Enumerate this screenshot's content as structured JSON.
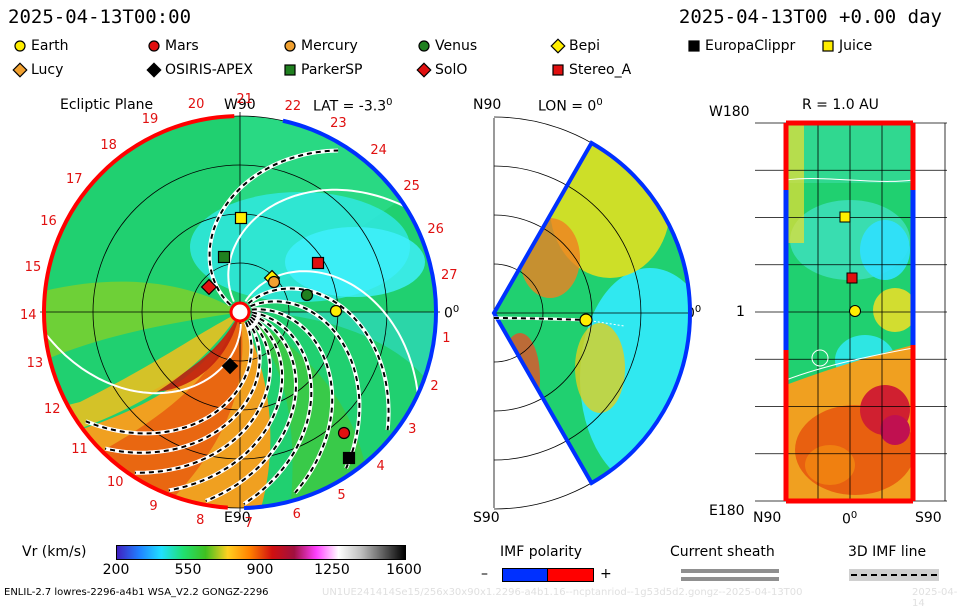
{
  "header": {
    "timestamp_left": "2025-04-13T00:00",
    "timestamp_right": "2025-04-13T00 +0.00 day"
  },
  "legend": {
    "row1": [
      {
        "name": "Earth",
        "shape": "circle",
        "color": "#ffee00"
      },
      {
        "name": "Mars",
        "shape": "circle",
        "color": "#e01010"
      },
      {
        "name": "Mercury",
        "shape": "circle",
        "color": "#f0a030"
      },
      {
        "name": "Venus",
        "shape": "circle",
        "color": "#208020"
      },
      {
        "name": "Bepi",
        "shape": "diamond",
        "color": "#ffee00"
      },
      {
        "name": "EuropaClippr",
        "shape": "square",
        "color": "#000000"
      },
      {
        "name": "Juice",
        "shape": "square",
        "color": "#ffee00"
      }
    ],
    "row2": [
      {
        "name": "Lucy",
        "shape": "diamond",
        "color": "#f0a030"
      },
      {
        "name": "OSIRIS-APEX",
        "shape": "diamond",
        "color": "#000000"
      },
      {
        "name": "ParkerSP",
        "shape": "square",
        "color": "#208020"
      },
      {
        "name": "SolO",
        "shape": "diamond",
        "color": "#e01010"
      },
      {
        "name": "Stereo_A",
        "shape": "square",
        "color": "#e01010"
      }
    ]
  },
  "panel_ecliptic": {
    "title": "Ecliptic Plane",
    "top_label": "W90",
    "lat_label": "LAT = -3.3",
    "deg_sup": "0",
    "right_label": "0",
    "bottom_label": "E90",
    "carrington_numbers": [
      "1",
      "2",
      "3",
      "4",
      "5",
      "6",
      "7",
      "8",
      "9",
      "10",
      "11",
      "12",
      "13",
      "14",
      "15",
      "16",
      "17",
      "18",
      "19",
      "20",
      "21",
      "22",
      "23",
      "24",
      "25",
      "26",
      "27"
    ]
  },
  "panel_meridional": {
    "top_label": "N90",
    "lon_label": "LON = 0",
    "deg_sup": "0",
    "right_label": "0",
    "bottom_label": "S90"
  },
  "panel_sphere": {
    "title": "R = 1.0 AU",
    "top_left": "W180",
    "mid_left": "1",
    "bottom_left": "E180",
    "bottom_labels": [
      "N90",
      "0",
      "S90"
    ],
    "deg_sup": "0"
  },
  "colorbar": {
    "label": "Vr (km/s)",
    "ticks": [
      "200",
      "550",
      "900",
      "1250",
      "1600"
    ],
    "stops": [
      "#4020c0",
      "#2080ff",
      "#20e0ff",
      "#20e070",
      "#40c020",
      "#ffd020",
      "#ff8000",
      "#d01010",
      "#a01040",
      "#ff40ff",
      "#ffffff",
      "#c0c0c0",
      "#606060",
      "#000000"
    ]
  },
  "imf_polarity": {
    "label": "IMF polarity",
    "minus": "–",
    "plus": "+",
    "neg_color": "#0030ff",
    "pos_color": "#ff0000"
  },
  "current_sheath": {
    "label": "Current sheath"
  },
  "imf_line": {
    "label": "3D IMF line"
  },
  "footer": {
    "left": "ENLIL-2.7 lowres-2296-a4b1 WSA_V2.2 GONGZ-2296",
    "right_faded": "UN1UE241414Se15/256x30x90x1.2296-a4b1.16--ncptanriod--1g53d5d2.gongz--2025-04-13T00",
    "right_date": "2025-04-14"
  },
  "chart_data": {
    "type": "heatmap",
    "title": "",
    "quantity": "Vr (km/s)",
    "color_range": [
      200,
      1600
    ],
    "color_ticks": [
      200,
      550,
      900,
      1250,
      1600
    ],
    "panels": [
      "Ecliptic Plane (LAT = -3.3°)",
      "Meridional (LON = 0°)",
      "Sphere at R = 1.0 AU"
    ],
    "ecliptic_objects": [
      "Earth",
      "Mercury",
      "Venus",
      "Mars",
      "Bepi",
      "EuropaClippr",
      "Juice",
      "Lucy",
      "OSIRIS-APEX",
      "ParkerSP",
      "SolO",
      "Stereo_A"
    ],
    "carrington_sectors": [
      1,
      2,
      3,
      4,
      5,
      6,
      7,
      8,
      9,
      10,
      11,
      12,
      13,
      14,
      15,
      16,
      17,
      18,
      19,
      20,
      21,
      22,
      23,
      24,
      25,
      26,
      27
    ]
  }
}
